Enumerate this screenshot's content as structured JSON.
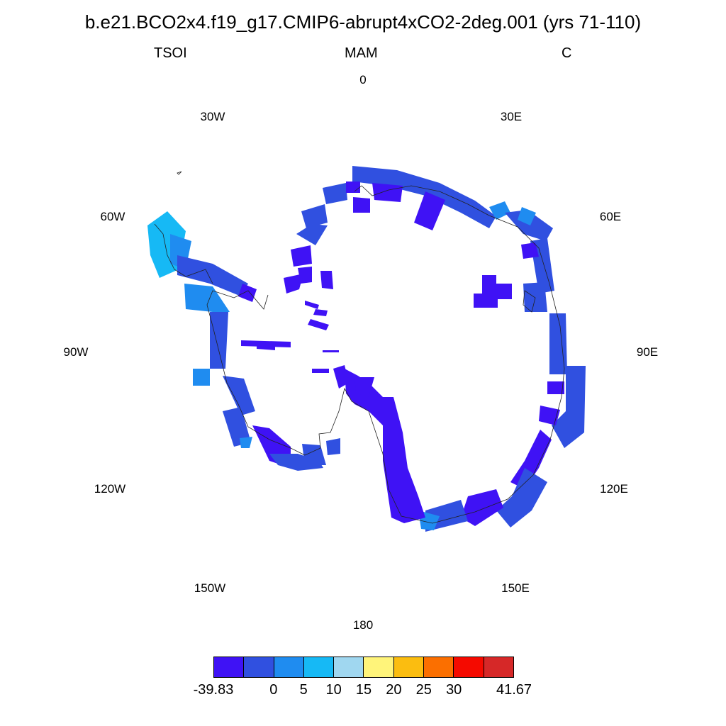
{
  "title": "b.e21.BCO2x4.f19_g17.CMIP6-abrupt4xCO2-2deg.001 (yrs 71-110)",
  "labels": {
    "variable": "TSOI",
    "season": "MAM",
    "units": "C"
  },
  "longitude_labels": {
    "top": "0",
    "top_right": "30E",
    "right_upper": "60E",
    "right": "90E",
    "right_lower": "120E",
    "bottom_right": "150E",
    "bottom": "180",
    "bottom_left": "150W",
    "left_lower": "120W",
    "left": "90W",
    "left_upper": "60W",
    "top_left": "30W"
  },
  "colorbar": {
    "colors": [
      "#3f12f5",
      "#3050e0",
      "#1f8cf0",
      "#16b9f5",
      "#a0d7f0",
      "#fff47a",
      "#fbbd10",
      "#fb6f00",
      "#f50a00",
      "#d62828"
    ],
    "labels": [
      "-39.83",
      "0",
      "5",
      "10",
      "15",
      "20",
      "25",
      "30",
      "41.67"
    ]
  },
  "chart_data": {
    "type": "heatmap",
    "projection": "south-polar-stereographic",
    "field": "TSOI",
    "season": "MAM",
    "units": "C",
    "range": [
      -39.83,
      41.67
    ],
    "levels": [
      0,
      5,
      10,
      15,
      20,
      25,
      30
    ],
    "note_visible_regions": "Antarctic coastal ring of cells, mostly in the lowest two colour bins (-39.83 to 5); Antarctic Peninsula cells in the 5 to 10 bins"
  }
}
